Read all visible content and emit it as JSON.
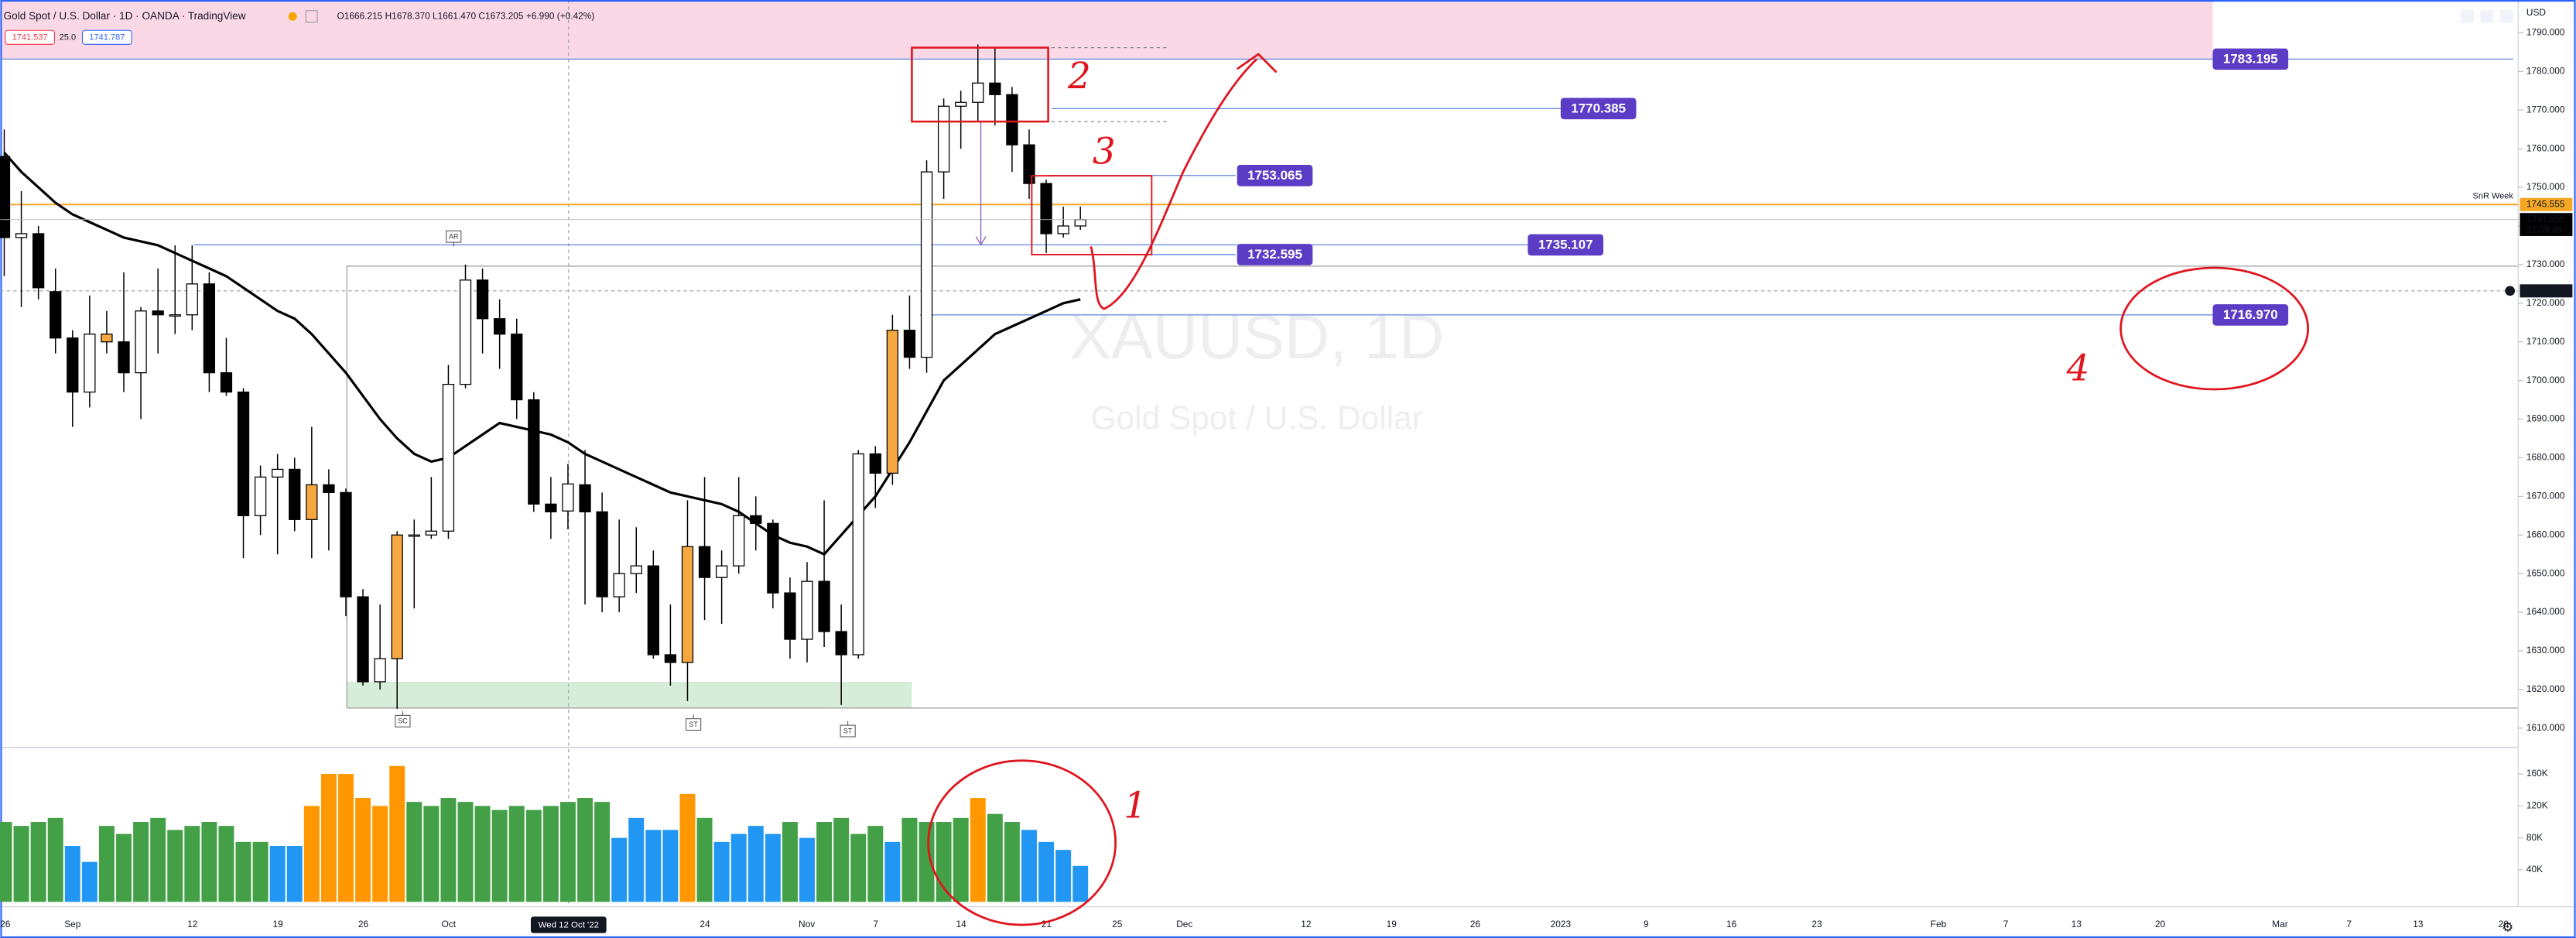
{
  "header": {
    "title": "Gold Spot / U.S. Dollar · 1D · OANDA · TradingView",
    "ohlc": "O1666.215 H1678.370 L1661.470 C1673.205 +6.990 (+0.42%)",
    "sell": "1741.537",
    "spread": "25.0",
    "buy": "1741.787",
    "currency": "USD"
  },
  "chart_data": {
    "type": "candlestick",
    "watermark_title": "XAUUSD, 1D",
    "watermark_subtitle": "Gold Spot / U.S. Dollar",
    "x_labels": [
      "26",
      "Sep",
      "12",
      "19",
      "26",
      "Oct",
      "24",
      "Nov",
      "7",
      "14",
      "21",
      "25",
      "Dec",
      "12",
      "19",
      "26",
      "2023",
      "9",
      "16",
      "23",
      "Feb",
      "7",
      "13",
      "20",
      "Mar",
      "7",
      "13",
      "20"
    ],
    "open": [
      1758,
      1737,
      1738,
      1723,
      1711,
      1697,
      1712,
      1710,
      1702,
      1718,
      1717,
      1717,
      1725,
      1702,
      1697,
      1665,
      1675,
      1677,
      1664,
      1673,
      1671,
      1644,
      1622,
      1628,
      1660,
      1660,
      1661,
      1699,
      1726,
      1716,
      1712,
      1695,
      1668,
      1666.215,
      1673,
      1666,
      1644,
      1650,
      1652,
      1629,
      1627,
      1657,
      1649,
      1652,
      1665,
      1663,
      1645,
      1633,
      1648,
      1635,
      1629,
      1681,
      1676,
      1713,
      1706,
      1754,
      1771,
      1772,
      1777,
      1774,
      1761,
      1751,
      1738,
      1740
    ],
    "high": [
      1765,
      1749,
      1740,
      1729,
      1713,
      1722,
      1718,
      1728,
      1719,
      1729,
      1735,
      1735,
      1728,
      1711,
      1698,
      1678,
      1681,
      1680,
      1688,
      1677,
      1672,
      1646,
      1642,
      1661,
      1664,
      1675,
      1704,
      1730,
      1729,
      1721,
      1716,
      1697,
      1675,
      1678.37,
      1682,
      1671,
      1664,
      1662,
      1656,
      1642,
      1669,
      1675,
      1656,
      1675,
      1670,
      1664,
      1649,
      1653,
      1669,
      1642,
      1682,
      1683,
      1717,
      1722,
      1757,
      1773,
      1775,
      1787,
      1786,
      1776,
      1765,
      1752,
      1745,
      1745
    ],
    "low": [
      1727,
      1719,
      1721,
      1707,
      1688,
      1693,
      1707,
      1697,
      1690,
      1707,
      1712,
      1713,
      1697,
      1696,
      1654,
      1660,
      1655,
      1661,
      1654,
      1656,
      1639,
      1621,
      1620,
      1615,
      1641,
      1659,
      1659,
      1698,
      1707,
      1703,
      1690,
      1666,
      1659,
      1661.47,
      1642,
      1640,
      1640,
      1645,
      1628,
      1621,
      1617,
      1638,
      1637,
      1650,
      1656,
      1641,
      1628,
      1627,
      1631,
      1616,
      1628,
      1667,
      1673,
      1703,
      1702,
      1747,
      1760,
      1767,
      1766,
      1754,
      1747,
      1733,
      1737,
      1739
    ],
    "close": [
      1737,
      1738,
      1724,
      1711,
      1697,
      1712,
      1710,
      1702,
      1718,
      1717,
      1717,
      1725,
      1702,
      1697,
      1665,
      1675,
      1677,
      1664,
      1673,
      1671,
      1644,
      1622,
      1628,
      1660,
      1660,
      1661,
      1699,
      1726,
      1716,
      1712,
      1695,
      1668,
      1666,
      1673.205,
      1666,
      1644,
      1650,
      1652,
      1629,
      1627,
      1657,
      1649,
      1652,
      1665,
      1663,
      1645,
      1633,
      1648,
      1635,
      1629,
      1681,
      1676,
      1713,
      1706,
      1754,
      1771,
      1772,
      1777,
      1774,
      1761,
      1751,
      1738,
      1740,
      1741.655
    ],
    "candle_colors": [
      "#000000",
      "#ffffff",
      "#000000",
      "#000000",
      "#000000",
      "#ffffff",
      "#f5a742",
      "#000000",
      "#ffffff",
      "#000000",
      "#ffffff",
      "#ffffff",
      "#000000",
      "#000000",
      "#000000",
      "#ffffff",
      "#ffffff",
      "#000000",
      "#f5a742",
      "#000000",
      "#000000",
      "#000000",
      "#ffffff",
      "#f5a742",
      "#ffffff",
      "#ffffff",
      "#ffffff",
      "#ffffff",
      "#000000",
      "#000000",
      "#000000",
      "#000000",
      "#000000",
      "#ffffff",
      "#000000",
      "#000000",
      "#ffffff",
      "#ffffff",
      "#000000",
      "#000000",
      "#f5a742",
      "#000000",
      "#ffffff",
      "#ffffff",
      "#000000",
      "#000000",
      "#000000",
      "#ffffff",
      "#000000",
      "#000000",
      "#ffffff",
      "#000000",
      "#f5a742",
      "#000000",
      "#ffffff",
      "#ffffff",
      "#ffffff",
      "#ffffff",
      "#000000",
      "#000000",
      "#000000",
      "#000000",
      "#ffffff",
      "#ffffff"
    ],
    "ma": {
      "color": "#000000",
      "values": [
        1759,
        1754,
        1750,
        1746,
        1743,
        1741,
        1739,
        1737,
        1736,
        1735,
        1733,
        1731,
        1729,
        1727,
        1724,
        1721,
        1718,
        1716,
        1712,
        1707,
        1702,
        1696,
        1690,
        1685,
        1681,
        1679,
        1680,
        1683,
        1686,
        1689,
        1688,
        1687,
        1686,
        1684,
        1681,
        1679,
        1677,
        1675,
        1673,
        1671,
        1670,
        1669,
        1668,
        1666,
        1663,
        1660,
        1658,
        1657,
        1655,
        1660,
        1665,
        1670,
        1677,
        1684,
        1692,
        1700,
        1704,
        1708,
        1712,
        1714,
        1716,
        1718,
        1720,
        1721
      ]
    },
    "ylim": [
      1605,
      1798.5
    ],
    "yticks": [
      {
        "value": 1790,
        "label": "1790.000"
      },
      {
        "value": 1780,
        "label": "1780.000"
      },
      {
        "value": 1770,
        "label": "1770.000"
      },
      {
        "value": 1760,
        "label": "1760.000"
      },
      {
        "value": 1750,
        "label": "1750.000"
      },
      {
        "value": 1740,
        "label": "1740.000"
      },
      {
        "value": 1730,
        "label": "1730.000"
      },
      {
        "value": 1720,
        "label": "1720.000"
      },
      {
        "value": 1710,
        "label": "1710.000"
      },
      {
        "value": 1700,
        "label": "1700.000"
      },
      {
        "value": 1690,
        "label": "1690.000"
      },
      {
        "value": 1680,
        "label": "1680.000"
      },
      {
        "value": 1670,
        "label": "1670.000"
      },
      {
        "value": 1660,
        "label": "1660.000"
      },
      {
        "value": 1650,
        "label": "1650.000"
      },
      {
        "value": 1640,
        "label": "1640.000"
      },
      {
        "value": 1630,
        "label": "1630.000"
      },
      {
        "value": 1620,
        "label": "1620.000"
      },
      {
        "value": 1610,
        "label": "1610.000"
      }
    ],
    "levels": [
      1783.195,
      1770.385,
      1753.065,
      1735.107,
      1732.595,
      {
        "value": 1716.97,
        "label": "1716.970"
      }
    ],
    "level_color": "#5b3cc4",
    "snr_line": {
      "name": "SnR Week",
      "value": 1745.555,
      "color": "#f5a623"
    },
    "last_price": {
      "value": 1741.655,
      "countdown": "21:09:48"
    },
    "crosshair": {
      "value": 1723.201,
      "x_label": "Wed 12 Oct '22"
    },
    "markers": [
      "AR",
      "SC",
      "ST",
      "ST"
    ],
    "annotations": [
      "1",
      "2",
      "3",
      "4"
    ],
    "volume": {
      "values": [
        100000,
        95000,
        100000,
        105000,
        70000,
        50000,
        95000,
        85000,
        100000,
        105000,
        90000,
        95000,
        100000,
        95000,
        75000,
        75000,
        70000,
        70000,
        120000,
        160000,
        160000,
        130000,
        120000,
        170000,
        125000,
        120000,
        130000,
        125000,
        120000,
        115000,
        120000,
        115000,
        120000,
        125000,
        130000,
        125000,
        80000,
        105000,
        90000,
        90000,
        135000,
        105000,
        75000,
        85000,
        95000,
        85000,
        100000,
        80000,
        100000,
        105000,
        85000,
        95000,
        75000,
        105000,
        100000,
        100000,
        105000,
        130000,
        110000,
        100000,
        90000,
        75000,
        65000,
        45000
      ],
      "colors": [
        "#43a047",
        "#43a047",
        "#43a047",
        "#43a047",
        "#2196f3",
        "#2196f3",
        "#43a047",
        "#43a047",
        "#43a047",
        "#43a047",
        "#43a047",
        "#43a047",
        "#43a047",
        "#43a047",
        "#43a047",
        "#43a047",
        "#2196f3",
        "#2196f3",
        "#ff9800",
        "#ff9800",
        "#ff9800",
        "#ff9800",
        "#ff9800",
        "#ff9800",
        "#43a047",
        "#43a047",
        "#43a047",
        "#43a047",
        "#43a047",
        "#43a047",
        "#43a047",
        "#43a047",
        "#43a047",
        "#43a047",
        "#43a047",
        "#43a047",
        "#2196f3",
        "#2196f3",
        "#2196f3",
        "#2196f3",
        "#ff9800",
        "#43a047",
        "#2196f3",
        "#2196f3",
        "#2196f3",
        "#2196f3",
        "#43a047",
        "#2196f3",
        "#43a047",
        "#43a047",
        "#43a047",
        "#43a047",
        "#2196f3",
        "#43a047",
        "#43a047",
        "#43a047",
        "#43a047",
        "#ff9800",
        "#43a047",
        "#43a047",
        "#2196f3",
        "#2196f3",
        "#2196f3",
        "#2196f3"
      ],
      "ylim": [
        0,
        187000
      ],
      "yticks": [
        {
          "value": 160000,
          "label": "160K"
        },
        {
          "value": 120000,
          "label": "120K"
        },
        {
          "value": 80000,
          "label": "80K"
        },
        {
          "value": 40000,
          "label": "40K"
        }
      ]
    }
  }
}
